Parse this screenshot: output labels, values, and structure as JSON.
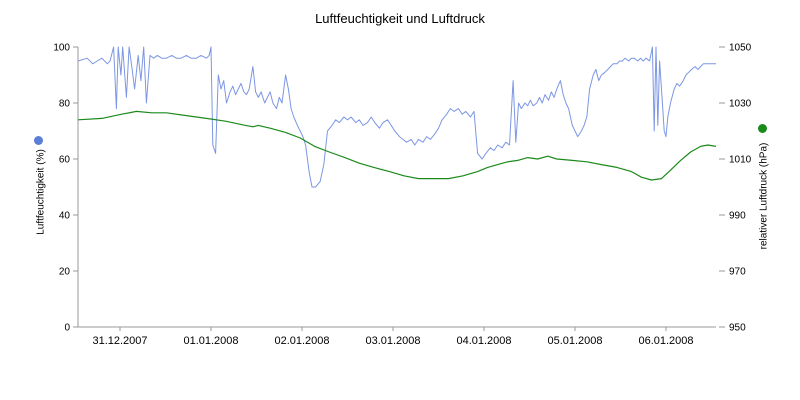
{
  "chart_data": {
    "type": "line",
    "title": "Luftfeuchtigkeit und Luftdruck",
    "grid": false,
    "legend_position": "axis-dots",
    "x_axis": {
      "tick_labels": [
        "31.12.2007",
        "01.01.2008",
        "02.01.2008",
        "03.01.2008",
        "04.01.2008",
        "05.01.2008",
        "06.01.2008"
      ]
    },
    "left_axis": {
      "label": "Luftfeuchtigkeit (%)",
      "min": 0,
      "max": 100,
      "ticks": [
        0,
        20,
        40,
        60,
        80,
        100
      ]
    },
    "right_axis": {
      "label": "relativer Luftdruck (hPa)",
      "min": 950,
      "max": 1050,
      "ticks": [
        950,
        970,
        990,
        1010,
        1030,
        1050
      ]
    },
    "series": [
      {
        "id": "humidity",
        "name": "Luftfeuchtigkeit",
        "axis": "left",
        "color": "#7c96e4",
        "dot_color": "#5b7ed6",
        "width": 1,
        "points": [
          [
            -0.46,
            95
          ],
          [
            -0.36,
            96
          ],
          [
            -0.3,
            94
          ],
          [
            -0.25,
            95
          ],
          [
            -0.2,
            96
          ],
          [
            -0.14,
            94
          ],
          [
            -0.11,
            95
          ],
          [
            -0.07,
            100
          ],
          [
            -0.04,
            78
          ],
          [
            -0.02,
            100
          ],
          [
            0.01,
            90
          ],
          [
            0.03,
            100
          ],
          [
            0.07,
            82
          ],
          [
            0.1,
            100
          ],
          [
            0.13,
            93
          ],
          [
            0.16,
            85
          ],
          [
            0.2,
            97
          ],
          [
            0.23,
            88
          ],
          [
            0.26,
            100
          ],
          [
            0.29,
            80
          ],
          [
            0.33,
            97
          ],
          [
            0.37,
            96
          ],
          [
            0.41,
            97
          ],
          [
            0.46,
            96
          ],
          [
            0.51,
            96
          ],
          [
            0.57,
            97
          ],
          [
            0.62,
            96
          ],
          [
            0.67,
            96
          ],
          [
            0.73,
            97
          ],
          [
            0.78,
            96
          ],
          [
            0.84,
            96
          ],
          [
            0.89,
            97
          ],
          [
            0.95,
            96
          ],
          [
            0.98,
            97
          ],
          [
            1.0,
            100
          ],
          [
            1.02,
            65
          ],
          [
            1.05,
            62
          ],
          [
            1.08,
            90
          ],
          [
            1.11,
            85
          ],
          [
            1.14,
            88
          ],
          [
            1.17,
            80
          ],
          [
            1.21,
            84
          ],
          [
            1.24,
            86
          ],
          [
            1.27,
            83
          ],
          [
            1.3,
            85
          ],
          [
            1.33,
            87
          ],
          [
            1.36,
            84
          ],
          [
            1.39,
            83
          ],
          [
            1.42,
            85
          ],
          [
            1.46,
            93
          ],
          [
            1.49,
            84
          ],
          [
            1.52,
            82
          ],
          [
            1.55,
            84
          ],
          [
            1.59,
            80
          ],
          [
            1.62,
            82
          ],
          [
            1.65,
            84
          ],
          [
            1.68,
            80
          ],
          [
            1.72,
            78
          ],
          [
            1.75,
            82
          ],
          [
            1.78,
            80
          ],
          [
            1.82,
            90
          ],
          [
            1.85,
            85
          ],
          [
            1.88,
            78
          ],
          [
            1.91,
            75
          ],
          [
            1.95,
            72
          ],
          [
            1.98,
            70
          ],
          [
            2.01,
            68
          ],
          [
            2.04,
            65
          ],
          [
            2.08,
            55
          ],
          [
            2.11,
            50
          ],
          [
            2.15,
            50
          ],
          [
            2.2,
            52
          ],
          [
            2.24,
            58
          ],
          [
            2.28,
            70
          ],
          [
            2.33,
            72
          ],
          [
            2.37,
            74
          ],
          [
            2.41,
            73
          ],
          [
            2.46,
            75
          ],
          [
            2.5,
            74
          ],
          [
            2.54,
            75
          ],
          [
            2.59,
            73
          ],
          [
            2.63,
            74
          ],
          [
            2.67,
            72
          ],
          [
            2.72,
            73
          ],
          [
            2.76,
            75
          ],
          [
            2.8,
            73
          ],
          [
            2.85,
            71
          ],
          [
            2.89,
            73
          ],
          [
            2.94,
            74
          ],
          [
            2.98,
            72
          ],
          [
            3.02,
            70
          ],
          [
            3.07,
            68
          ],
          [
            3.11,
            67
          ],
          [
            3.15,
            66
          ],
          [
            3.2,
            67
          ],
          [
            3.24,
            65
          ],
          [
            3.28,
            67
          ],
          [
            3.33,
            66
          ],
          [
            3.37,
            68
          ],
          [
            3.41,
            67
          ],
          [
            3.46,
            69
          ],
          [
            3.5,
            71
          ],
          [
            3.54,
            74
          ],
          [
            3.59,
            76
          ],
          [
            3.63,
            78
          ],
          [
            3.67,
            77
          ],
          [
            3.72,
            78
          ],
          [
            3.76,
            76
          ],
          [
            3.8,
            77
          ],
          [
            3.85,
            75
          ],
          [
            3.89,
            77
          ],
          [
            3.93,
            62
          ],
          [
            3.98,
            60
          ],
          [
            4.02,
            62
          ],
          [
            4.07,
            64
          ],
          [
            4.11,
            63
          ],
          [
            4.15,
            65
          ],
          [
            4.2,
            64
          ],
          [
            4.24,
            66
          ],
          [
            4.28,
            65
          ],
          [
            4.32,
            88
          ],
          [
            4.35,
            66
          ],
          [
            4.38,
            80
          ],
          [
            4.41,
            78
          ],
          [
            4.45,
            80
          ],
          [
            4.48,
            79
          ],
          [
            4.51,
            81
          ],
          [
            4.54,
            79
          ],
          [
            4.58,
            80
          ],
          [
            4.61,
            82
          ],
          [
            4.64,
            80
          ],
          [
            4.67,
            83
          ],
          [
            4.71,
            81
          ],
          [
            4.74,
            84
          ],
          [
            4.77,
            82
          ],
          [
            4.8,
            85
          ],
          [
            4.84,
            88
          ],
          [
            4.87,
            83
          ],
          [
            4.9,
            80
          ],
          [
            4.93,
            78
          ],
          [
            4.97,
            72
          ],
          [
            5.0,
            70
          ],
          [
            5.03,
            68
          ],
          [
            5.07,
            70
          ],
          [
            5.1,
            72
          ],
          [
            5.13,
            75
          ],
          [
            5.16,
            85
          ],
          [
            5.2,
            90
          ],
          [
            5.23,
            92
          ],
          [
            5.26,
            88
          ],
          [
            5.29,
            90
          ],
          [
            5.33,
            91
          ],
          [
            5.36,
            92
          ],
          [
            5.39,
            93
          ],
          [
            5.42,
            94
          ],
          [
            5.46,
            94
          ],
          [
            5.49,
            95
          ],
          [
            5.52,
            95
          ],
          [
            5.55,
            96
          ],
          [
            5.59,
            95
          ],
          [
            5.62,
            96
          ],
          [
            5.65,
            96
          ],
          [
            5.69,
            95
          ],
          [
            5.72,
            96
          ],
          [
            5.75,
            95
          ],
          [
            5.78,
            96
          ],
          [
            5.82,
            95
          ],
          [
            5.85,
            100
          ],
          [
            5.87,
            70
          ],
          [
            5.89,
            100
          ],
          [
            5.91,
            72
          ],
          [
            5.93,
            95
          ],
          [
            5.96,
            80
          ],
          [
            5.98,
            70
          ],
          [
            6.0,
            68
          ],
          [
            6.02,
            75
          ],
          [
            6.05,
            80
          ],
          [
            6.09,
            85
          ],
          [
            6.12,
            87
          ],
          [
            6.15,
            86
          ],
          [
            6.19,
            88
          ],
          [
            6.22,
            90
          ],
          [
            6.25,
            91
          ],
          [
            6.28,
            92
          ],
          [
            6.32,
            93
          ],
          [
            6.35,
            92
          ],
          [
            6.38,
            93
          ],
          [
            6.41,
            94
          ],
          [
            6.45,
            94
          ],
          [
            6.55,
            94
          ]
        ]
      },
      {
        "id": "pressure",
        "name": "relativer Luftdruck",
        "axis": "right",
        "color": "#1b8a1b",
        "dot_color": "#1b8a1b",
        "width": 1.2,
        "points": [
          [
            -0.46,
            1024
          ],
          [
            -0.2,
            1024.5
          ],
          [
            0.02,
            1026
          ],
          [
            0.18,
            1027
          ],
          [
            0.35,
            1026.5
          ],
          [
            0.51,
            1026.5
          ],
          [
            0.73,
            1025.5
          ],
          [
            0.95,
            1024.5
          ],
          [
            1.16,
            1023.5
          ],
          [
            1.38,
            1022
          ],
          [
            1.46,
            1021.5
          ],
          [
            1.52,
            1022
          ],
          [
            1.65,
            1021
          ],
          [
            1.82,
            1019.5
          ],
          [
            1.98,
            1017.5
          ],
          [
            2.14,
            1014.5
          ],
          [
            2.3,
            1012.5
          ],
          [
            2.47,
            1010.5
          ],
          [
            2.63,
            1008.5
          ],
          [
            2.79,
            1007
          ],
          [
            2.96,
            1005.5
          ],
          [
            3.12,
            1004
          ],
          [
            3.28,
            1003
          ],
          [
            3.45,
            1003
          ],
          [
            3.61,
            1003
          ],
          [
            3.77,
            1004
          ],
          [
            3.93,
            1005.5
          ],
          [
            4.04,
            1007
          ],
          [
            4.15,
            1008
          ],
          [
            4.26,
            1009
          ],
          [
            4.37,
            1009.5
          ],
          [
            4.48,
            1010.5
          ],
          [
            4.59,
            1010
          ],
          [
            4.7,
            1011
          ],
          [
            4.8,
            1010
          ],
          [
            4.97,
            1009.5
          ],
          [
            5.13,
            1009
          ],
          [
            5.29,
            1008
          ],
          [
            5.46,
            1007
          ],
          [
            5.62,
            1005.5
          ],
          [
            5.73,
            1003.5
          ],
          [
            5.84,
            1002.5
          ],
          [
            5.95,
            1003
          ],
          [
            6.05,
            1006
          ],
          [
            6.16,
            1009.5
          ],
          [
            6.27,
            1012.5
          ],
          [
            6.38,
            1014.5
          ],
          [
            6.46,
            1015
          ],
          [
            6.55,
            1014.5
          ]
        ]
      }
    ],
    "axis_line_color": "#999999",
    "tick_text_color": "#000000"
  }
}
